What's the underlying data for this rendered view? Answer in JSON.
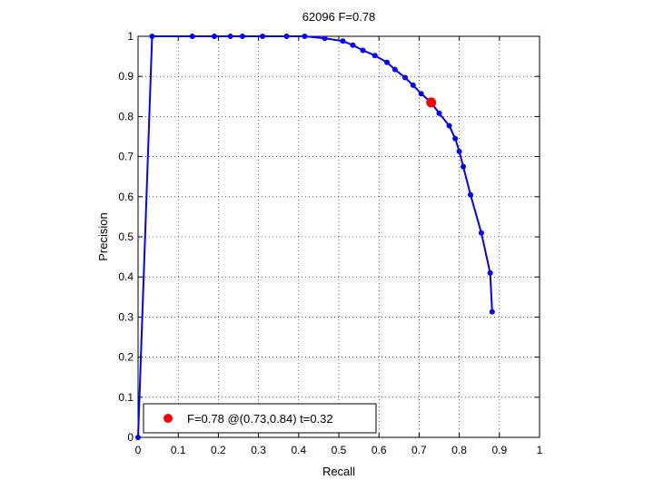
{
  "chart_data": {
    "type": "line",
    "title": "62096 F=0.78",
    "xlabel": "Recall",
    "ylabel": "Precision",
    "xlim": [
      0,
      1
    ],
    "ylim": [
      0,
      1
    ],
    "xticks": [
      "0",
      "0.1",
      "0.2",
      "0.3",
      "0.4",
      "0.5",
      "0.6",
      "0.7",
      "0.8",
      "0.9",
      "1"
    ],
    "yticks": [
      "0",
      "0.1",
      "0.2",
      "0.3",
      "0.4",
      "0.5",
      "0.6",
      "0.7",
      "0.8",
      "0.9",
      "1"
    ],
    "grid": true,
    "series": [
      {
        "color": "#0000ff",
        "points": [
          [
            0.0,
            0.0
          ],
          [
            0.035,
            1.0
          ],
          [
            0.135,
            1.0
          ],
          [
            0.19,
            1.0
          ],
          [
            0.23,
            1.0
          ],
          [
            0.26,
            1.0
          ],
          [
            0.31,
            1.0
          ],
          [
            0.37,
            1.0
          ],
          [
            0.415,
            1.0
          ],
          [
            0.465,
            0.995
          ],
          [
            0.51,
            0.988
          ],
          [
            0.535,
            0.978
          ],
          [
            0.56,
            0.965
          ],
          [
            0.59,
            0.952
          ],
          [
            0.62,
            0.935
          ],
          [
            0.64,
            0.917
          ],
          [
            0.665,
            0.897
          ],
          [
            0.685,
            0.878
          ],
          [
            0.705,
            0.857
          ],
          [
            0.73,
            0.835
          ],
          [
            0.75,
            0.808
          ],
          [
            0.775,
            0.777
          ],
          [
            0.79,
            0.745
          ],
          [
            0.8,
            0.713
          ],
          [
            0.81,
            0.675
          ],
          [
            0.828,
            0.605
          ],
          [
            0.855,
            0.51
          ],
          [
            0.877,
            0.41
          ],
          [
            0.882,
            0.313
          ]
        ]
      }
    ],
    "highlight": {
      "x": 0.73,
      "y": 0.835,
      "color": "#ff0000",
      "label": "F=0.78 @(0.73,0.84) t=0.32"
    },
    "legend_placement": "bottom-left"
  }
}
